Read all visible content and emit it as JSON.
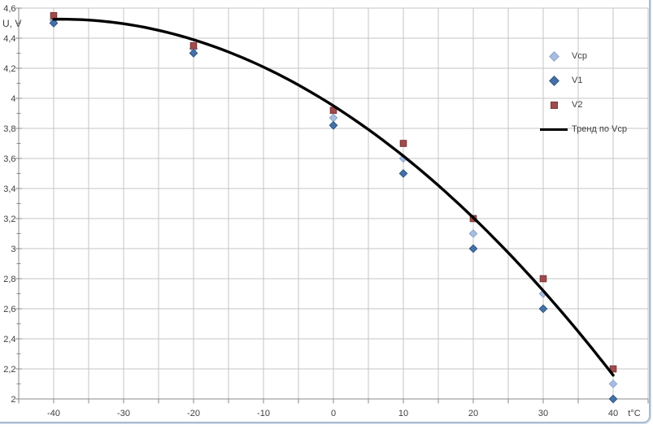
{
  "chart_data": {
    "type": "scatter",
    "title": "",
    "xlabel": "t°C",
    "ylabel": "U, V",
    "x": [
      -40,
      -20,
      0,
      10,
      20,
      30,
      40
    ],
    "series": [
      {
        "name": "Vcp",
        "marker": "diamond",
        "fill": "#A9BEDF",
        "stroke": "#8CA4CB",
        "values": [
          4.52,
          4.33,
          3.87,
          3.6,
          3.1,
          2.7,
          2.1
        ]
      },
      {
        "name": "V1",
        "marker": "diamond",
        "fill": "#4472A8",
        "stroke": "#2E537F",
        "values": [
          4.5,
          4.3,
          3.82,
          3.5,
          3.0,
          2.6,
          2.0
        ]
      },
      {
        "name": "V2",
        "marker": "square",
        "fill": "#9F4C4C",
        "stroke": "#7C3436",
        "values": [
          4.55,
          4.35,
          3.92,
          3.7,
          3.2,
          2.8,
          2.2
        ]
      }
    ],
    "trendline": {
      "label": "Тренд по Vcp",
      "color": "#000000",
      "poly_a": 3.95,
      "poly_b": -0.0296,
      "poly_c": -0.00038,
      "t_min": -40,
      "t_max": 40
    },
    "axes": {
      "x": {
        "min": -45,
        "max": 45,
        "grid_step": 5,
        "tick_label_values": [
          -40,
          -30,
          -20,
          -10,
          0,
          10,
          20,
          30,
          40
        ],
        "tick_labels": [
          "-40",
          "-30",
          "-20",
          "-10",
          "0",
          "10",
          "20",
          "30",
          "40"
        ],
        "unit_label": "t°C"
      },
      "y": {
        "min": 2,
        "max": 4.6,
        "major_step": 0.2,
        "minor_step": 0.1,
        "tick_labels": [
          "2",
          "2,2",
          "2,4",
          "2,6",
          "2,8",
          "3",
          "3,2",
          "3,4",
          "3,6",
          "3,8",
          "4",
          "4,2",
          "4,4",
          "4,6"
        ],
        "title": "U, V"
      }
    },
    "legend": {
      "position": "right",
      "entries": [
        "Vcp",
        "V1",
        "V2",
        "Тренд по Vcp"
      ]
    },
    "grid": true
  },
  "colors": {
    "gridline": "#C4C4C4",
    "axis": "#8A8A8A",
    "text": "#3F3F3F",
    "trend": "#000000",
    "frame": "#A9BBD1",
    "background": "#FFFFFF"
  }
}
